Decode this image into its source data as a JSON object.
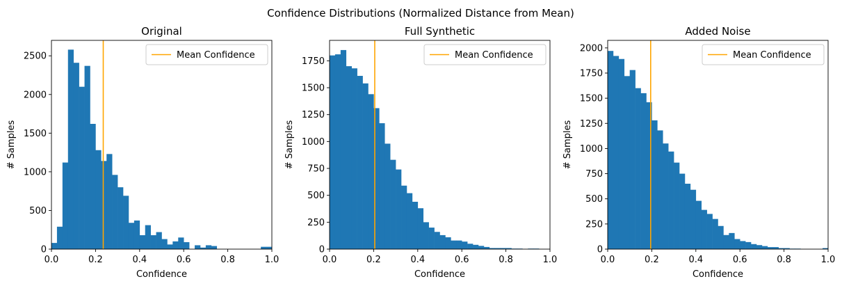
{
  "figure": {
    "suptitle": "Confidence Distributions (Normalized Distance from Mean)"
  },
  "colors": {
    "bar": "#1f77b4",
    "mean_line": "#ffa500",
    "axes": "#000000"
  },
  "chart_data": [
    {
      "type": "bar",
      "title": "Original",
      "xlabel": "Confidence",
      "ylabel": "# Samples",
      "xlim": [
        0,
        1
      ],
      "ylim": [
        0,
        2700
      ],
      "xticks": [
        "0.0",
        "0.2",
        "0.4",
        "0.6",
        "0.8",
        "1.0"
      ],
      "yticks": [
        "0",
        "500",
        "1000",
        "1500",
        "2000",
        "2500"
      ],
      "ytick_values": [
        0,
        500,
        1000,
        1500,
        2000,
        2500
      ],
      "bin_edges_start": 0.0,
      "bin_width": 0.025,
      "counts": [
        80,
        290,
        1120,
        2580,
        2410,
        2100,
        2370,
        1620,
        1280,
        1140,
        1230,
        960,
        800,
        690,
        340,
        370,
        180,
        310,
        180,
        220,
        130,
        60,
        100,
        150,
        90,
        0,
        50,
        20,
        50,
        40,
        0,
        0,
        0,
        0,
        0,
        0,
        0,
        0,
        30,
        30
      ],
      "mean_line": 0.235,
      "legend": {
        "label": "Mean Confidence",
        "position": "upper right"
      }
    },
    {
      "type": "bar",
      "title": "Full Synthetic",
      "xlabel": "Confidence",
      "ylabel": "# Samples",
      "xlim": [
        0,
        1
      ],
      "ylim": [
        0,
        1940
      ],
      "xticks": [
        "0.0",
        "0.2",
        "0.4",
        "0.6",
        "0.8",
        "1.0"
      ],
      "yticks": [
        "0",
        "250",
        "500",
        "750",
        "1000",
        "1250",
        "1500",
        "1750"
      ],
      "ytick_values": [
        0,
        250,
        500,
        750,
        1000,
        1250,
        1500,
        1750
      ],
      "bin_edges_start": 0.0,
      "bin_width": 0.025,
      "counts": [
        1800,
        1810,
        1850,
        1700,
        1680,
        1610,
        1540,
        1440,
        1310,
        1170,
        980,
        830,
        740,
        590,
        520,
        440,
        380,
        250,
        200,
        160,
        130,
        110,
        80,
        80,
        70,
        50,
        40,
        30,
        20,
        10,
        10,
        10,
        10,
        5,
        5,
        0,
        5,
        5,
        0,
        0
      ],
      "mean_line": 0.205,
      "legend": {
        "label": "Mean Confidence",
        "position": "upper right"
      }
    },
    {
      "type": "bar",
      "title": "Added Noise",
      "xlabel": "Confidence",
      "ylabel": "# Samples",
      "xlim": [
        0,
        1
      ],
      "ylim": [
        0,
        2075
      ],
      "xticks": [
        "0.0",
        "0.2",
        "0.4",
        "0.6",
        "0.8",
        "1.0"
      ],
      "yticks": [
        "0",
        "250",
        "500",
        "750",
        "1000",
        "1250",
        "1500",
        "1750",
        "2000"
      ],
      "ytick_values": [
        0,
        250,
        500,
        750,
        1000,
        1250,
        1500,
        1750,
        2000
      ],
      "bin_edges_start": 0.0,
      "bin_width": 0.025,
      "counts": [
        1970,
        1920,
        1890,
        1720,
        1780,
        1600,
        1550,
        1460,
        1280,
        1180,
        1050,
        970,
        860,
        750,
        650,
        590,
        480,
        390,
        350,
        300,
        230,
        140,
        160,
        100,
        80,
        70,
        50,
        40,
        30,
        20,
        20,
        10,
        10,
        5,
        5,
        0,
        0,
        0,
        0,
        10
      ],
      "mean_line": 0.195,
      "legend": {
        "label": "Mean Confidence",
        "position": "upper right"
      }
    }
  ]
}
